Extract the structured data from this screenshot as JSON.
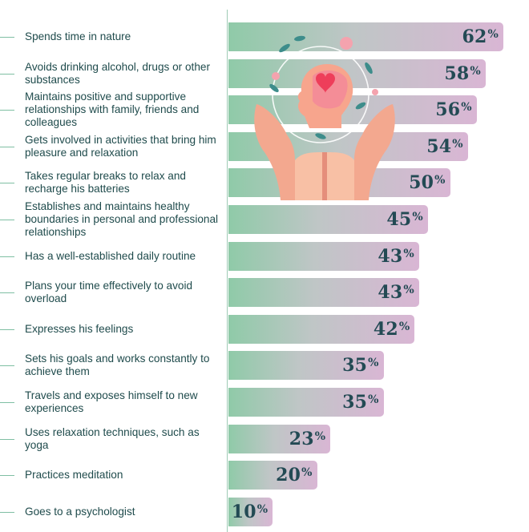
{
  "chart_data": {
    "type": "bar",
    "orientation": "horizontal",
    "categories": [
      "Spends time in nature",
      "Avoids drinking alcohol, drugs or other substances",
      "Maintains positive and supportive relationships with family, friends and colleagues",
      "Gets involved in activities that bring him pleasure and relaxation",
      "Takes regular breaks to relax and recharge his batteries",
      "Establishes and maintains healthy boundaries in personal and professional relationships",
      "Has a well-established daily routine",
      "Plans your time effectively to avoid overload",
      "Expresses his feelings",
      "Sets his goals and works constantly to achieve them",
      "Travels and exposes himself to new experiences",
      "Uses relaxation techniques, such as yoga",
      "Practices meditation",
      "Goes to a psychologist"
    ],
    "values": [
      62,
      58,
      56,
      54,
      50,
      45,
      43,
      43,
      42,
      35,
      35,
      23,
      20,
      10
    ],
    "value_suffix": "%",
    "xlim": [
      0,
      65
    ],
    "title": "",
    "xlabel": "",
    "ylabel": ""
  },
  "colors": {
    "bar_start": "#8fcaa8",
    "bar_end": "#d9b6d4",
    "text": "#1f4b4c",
    "value_text": "#234a54",
    "accent": "#f2607a"
  },
  "illustration": {
    "icon": "heart-head-in-hands-icon"
  }
}
